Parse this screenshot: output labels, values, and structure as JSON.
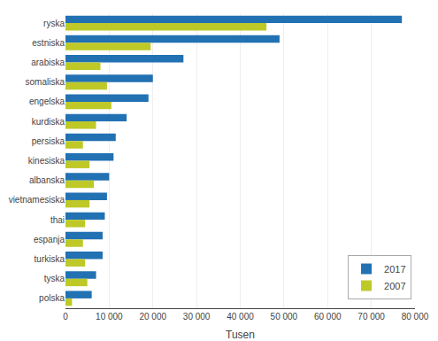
{
  "chart_data": {
    "type": "bar",
    "orientation": "horizontal",
    "categories": [
      "ryska",
      "estniska",
      "arabiska",
      "somaliska",
      "engelska",
      "kurdiska",
      "persiska",
      "kinesiska",
      "albanska",
      "vietnamesiska",
      "thai",
      "espanja",
      "turkiska",
      "tyska",
      "polska"
    ],
    "series": [
      {
        "name": "2017",
        "color": "#2271b3",
        "values": [
          77000,
          49000,
          27000,
          20000,
          19000,
          14000,
          11500,
          11000,
          10000,
          9500,
          9000,
          8500,
          8500,
          7000,
          6000
        ]
      },
      {
        "name": "2007",
        "color": "#bec928",
        "values": [
          46000,
          19500,
          8000,
          9500,
          10500,
          7000,
          4000,
          5500,
          6500,
          5500,
          4500,
          4000,
          4500,
          5000,
          1500
        ]
      }
    ],
    "xlabel": "Tusen",
    "xlim": [
      0,
      80000
    ],
    "xticks": [
      0,
      {
        "value": 10000,
        "label": "10 000"
      },
      {
        "value": 20000,
        "label": "20 000"
      },
      {
        "value": 30000,
        "label": "30 000"
      },
      {
        "value": 40000,
        "label": "40 000"
      },
      {
        "value": 50000,
        "label": "50 000"
      },
      {
        "value": 60000,
        "label": "60 000"
      },
      {
        "value": 70000,
        "label": "70 000"
      },
      {
        "value": 80000,
        "label": "80 000"
      }
    ],
    "grid": true,
    "legend": "lower right"
  }
}
